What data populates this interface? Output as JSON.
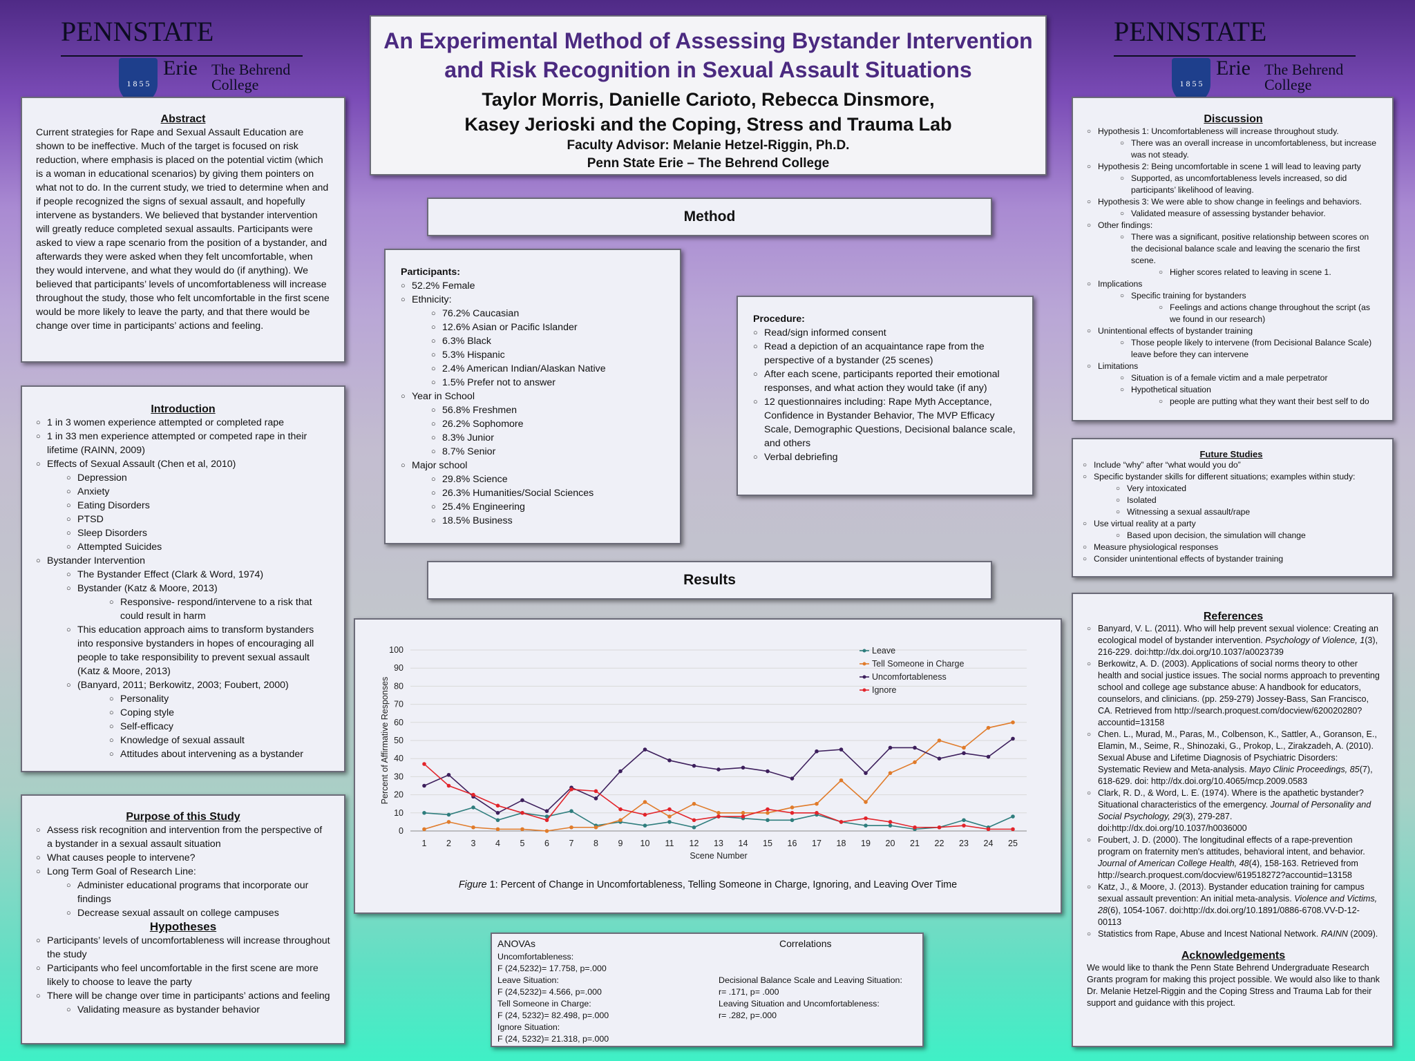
{
  "logo": {
    "wordmark": "PENNSTATE",
    "campus": "Erie",
    "college_line1": "The Behrend",
    "college_line2": "College",
    "seal": "1 8 5 5"
  },
  "title": {
    "line1": "An Experimental Method of Assessing Bystander Intervention",
    "line2": "and Risk Recognition in Sexual Assault Situations",
    "authors1": "Taylor Morris, Danielle Carioto, Rebecca Dinsmore,",
    "authors2": "Kasey Jerioski and the Coping, Stress and Trauma Lab",
    "advisor": "Faculty Advisor: Melanie Hetzel-Riggin, Ph.D.",
    "school": "Penn State Erie – The Behrend College"
  },
  "abstract": {
    "heading": "Abstract",
    "text": "Current strategies for Rape and Sexual Assault Education are shown to be ineffective. Much of the target is focused on risk reduction, where emphasis is placed on the potential victim (which is a woman in educational scenarios) by giving them pointers on what not to do.  In the current study, we tried to determine when and if people recognized the signs of sexual assault, and hopefully intervene as bystanders. We believed that bystander intervention will greatly reduce completed sexual assaults. Participants were asked to view a rape scenario from the position of a bystander, and afterwards they were asked when they felt uncomfortable, when they would intervene, and what they would do (if anything). We believed that participants’ levels of uncomfortableness will increase throughout the study, those who felt uncomfortable in the first scene would be more likely to leave the party, and that there would be change over time in participants’ actions and feeling."
  },
  "introduction": {
    "heading": "Introduction",
    "items": [
      {
        "level": 1,
        "text": "1 in 3 women experience attempted or completed rape"
      },
      {
        "level": 1,
        "text": "1 in 33 men experience attempted or competed rape in their lifetime (RAINN, 2009)"
      },
      {
        "level": 1,
        "text": "Effects of Sexual Assault (Chen et al, 2010)"
      },
      {
        "level": 2,
        "text": "Depression"
      },
      {
        "level": 2,
        "text": "Anxiety"
      },
      {
        "level": 2,
        "text": "Eating Disorders"
      },
      {
        "level": 2,
        "text": "PTSD"
      },
      {
        "level": 2,
        "text": "Sleep Disorders"
      },
      {
        "level": 2,
        "text": "Attempted Suicides"
      },
      {
        "level": 1,
        "text": "Bystander Intervention"
      },
      {
        "level": 2,
        "text": "The Bystander Effect (Clark & Word, 1974)"
      },
      {
        "level": 2,
        "text": "Bystander (Katz & Moore, 2013)"
      },
      {
        "level": 3,
        "text": "Responsive- respond/intervene to a risk that could result in harm"
      },
      {
        "level": 2,
        "text": "This education approach aims to transform bystanders into responsive bystanders in hopes of encouraging all people to take responsibility to prevent sexual assault (Katz & Moore, 2013)"
      },
      {
        "level": 2,
        "text": " (Banyard, 2011; Berkowitz, 2003; Foubert, 2000)"
      },
      {
        "level": 3,
        "text": "Personality"
      },
      {
        "level": 3,
        "text": "Coping style"
      },
      {
        "level": 3,
        "text": "Self-efficacy"
      },
      {
        "level": 3,
        "text": "Knowledge of sexual assault"
      },
      {
        "level": 3,
        "text": "Attitudes about intervening as a bystander"
      }
    ]
  },
  "purpose": {
    "heading": "Purpose of this Study",
    "items": [
      {
        "level": 1,
        "text": "Assess risk recognition and intervention from the perspective of a bystander in a sexual assault situation"
      },
      {
        "level": 1,
        "text": "What causes people to intervene?"
      },
      {
        "level": 1,
        "text": "Long Term Goal of Research Line:"
      },
      {
        "level": 2,
        "text": "Administer educational programs that incorporate our findings"
      },
      {
        "level": 2,
        "text": "Decrease sexual assault on college campuses"
      }
    ],
    "hyp_heading": "Hypotheses",
    "hyp_items": [
      {
        "level": 1,
        "text": "Participants’ levels of uncomfortableness will increase throughout the study"
      },
      {
        "level": 1,
        "text": "Participants who feel uncomfortable in the first scene are more likely to choose to leave the party"
      },
      {
        "level": 1,
        "text": "There will be change over time in participants’ actions and feeling"
      },
      {
        "level": 2,
        "text": "Validating measure as bystander behavior"
      }
    ]
  },
  "method": {
    "banner": "Method",
    "participants_heading": "Participants:",
    "participants": [
      {
        "level": 1,
        "text": "52.2% Female"
      },
      {
        "level": 1,
        "text": "Ethnicity:"
      },
      {
        "level": 2,
        "text": "76.2% Caucasian"
      },
      {
        "level": 2,
        "text": "12.6% Asian or Pacific Islander"
      },
      {
        "level": 2,
        "text": "6.3% Black"
      },
      {
        "level": 2,
        "text": "5.3% Hispanic"
      },
      {
        "level": 2,
        "text": "2.4% American Indian/Alaskan Native"
      },
      {
        "level": 2,
        "text": "1.5% Prefer not to answer"
      },
      {
        "level": 1,
        "text": "Year in School"
      },
      {
        "level": 2,
        "text": "56.8% Freshmen"
      },
      {
        "level": 2,
        "text": "26.2% Sophomore"
      },
      {
        "level": 2,
        "text": "8.3% Junior"
      },
      {
        "level": 2,
        "text": "8.7% Senior"
      },
      {
        "level": 1,
        "text": "Major school"
      },
      {
        "level": 2,
        "text": "29.8% Science"
      },
      {
        "level": 2,
        "text": "26.3% Humanities/Social Sciences"
      },
      {
        "level": 2,
        "text": "25.4% Engineering"
      },
      {
        "level": 2,
        "text": "18.5% Business"
      }
    ],
    "procedure_heading": "Procedure:",
    "procedure": [
      {
        "level": 1,
        "text": "Read/sign informed consent"
      },
      {
        "level": 1,
        "text": "Read a depiction of an acquaintance rape from the perspective of a bystander (25 scenes)"
      },
      {
        "level": 1,
        "text": "After each scene, participants reported their emotional responses, and what action they would take (if any)"
      },
      {
        "level": 1,
        "text": "12 questionnaires including: Rape Myth Acceptance, Confidence in Bystander Behavior, The MVP Efficacy Scale, Demographic Questions, Decisional balance scale, and others"
      },
      {
        "level": 1,
        "text": "Verbal debriefing"
      }
    ]
  },
  "results": {
    "banner": "Results",
    "caption_prefix": "Figure",
    "caption_num": " 1",
    "caption_text": ": Percent of Change in Uncomfortableness, Telling Someone in Charge, Ignoring, and Leaving Over Time"
  },
  "chart_data": {
    "type": "line",
    "title": "",
    "xlabel": "Scene Number",
    "ylabel": "Percent of Affirmative Responses",
    "ylim": [
      0,
      100
    ],
    "yticks": [
      0,
      10,
      20,
      30,
      40,
      50,
      60,
      70,
      80,
      90,
      100
    ],
    "x": [
      1,
      2,
      3,
      4,
      5,
      6,
      7,
      8,
      9,
      10,
      11,
      12,
      13,
      14,
      15,
      16,
      17,
      18,
      19,
      20,
      21,
      22,
      23,
      24,
      25
    ],
    "legend_position": "top-right",
    "grid": "horizontal",
    "series": [
      {
        "name": "Leave",
        "color": "#2e7d7d",
        "values": [
          10,
          9,
          13,
          6,
          10,
          8,
          11,
          3,
          5,
          3,
          5,
          2,
          8,
          7,
          6,
          6,
          9,
          5,
          3,
          3,
          1,
          2,
          6,
          2,
          8
        ]
      },
      {
        "name": "Tell Someone in Charge",
        "color": "#e07b2a",
        "values": [
          1,
          5,
          2,
          1,
          1,
          0,
          2,
          2,
          6,
          16,
          8,
          15,
          10,
          10,
          10,
          13,
          15,
          28,
          16,
          32,
          38,
          50,
          46,
          57,
          60
        ]
      },
      {
        "name": "Uncomfortableness",
        "color": "#3d1f5c",
        "values": [
          25,
          31,
          19,
          10,
          17,
          11,
          24,
          18,
          33,
          45,
          39,
          36,
          34,
          35,
          33,
          29,
          44,
          45,
          32,
          46,
          46,
          40,
          43,
          41,
          51
        ]
      },
      {
        "name": "Ignore",
        "color": "#e2242b",
        "values": [
          37,
          25,
          20,
          14,
          10,
          6,
          23,
          22,
          12,
          9,
          12,
          6,
          8,
          8,
          12,
          10,
          10,
          5,
          7,
          5,
          2,
          2,
          3,
          1,
          1
        ]
      }
    ]
  },
  "stats": {
    "anova_heading": "ANOVAs",
    "corr_heading": "Correlations",
    "anovas": [
      {
        "label": "Uncomfortableness:",
        "stat": "F (24,5232)= 17.758, p=.000"
      },
      {
        "label": "Leave Situation:",
        "stat": "F (24,5232)= 4.566, p=.000"
      },
      {
        "label": "Tell Someone in Charge:",
        "stat": "F (24, 5232)= 82.498, p=.000"
      },
      {
        "label": "Ignore Situation:",
        "stat": "F (24, 5232)= 21.318, p=.000"
      }
    ],
    "correlations": [
      {
        "label": "Decisional Balance Scale and Leaving Situation:",
        "stat": "r= .171, p= .000"
      },
      {
        "label": "Leaving Situation and Uncomfortableness:",
        "stat": "r= .282, p=.000"
      }
    ]
  },
  "discussion": {
    "heading": "Discussion",
    "items": [
      {
        "level": 1,
        "text": "Hypothesis 1: Uncomfortableness will increase throughout study."
      },
      {
        "level": 2,
        "text": "There was an overall increase in uncomfortableness, but increase was not steady."
      },
      {
        "level": 1,
        "text": "Hypothesis 2: Being uncomfortable in scene 1 will lead to leaving party"
      },
      {
        "level": 2,
        "text": "Supported, as uncomfortableness levels increased, so did participants’ likelihood of leaving."
      },
      {
        "level": 1,
        "text": "Hypothesis 3: We were able to show change in feelings and behaviors."
      },
      {
        "level": 2,
        "text": "Validated measure of assessing bystander behavior."
      },
      {
        "level": 1,
        "text": "Other findings:"
      },
      {
        "level": 2,
        "text": "There was a significant, positive relationship between scores on the decisional balance scale and leaving the scenario the first scene."
      },
      {
        "level": 3,
        "text": "Higher scores related to leaving in scene 1."
      },
      {
        "level": 1,
        "text": "Implications"
      },
      {
        "level": 2,
        "text": "Specific training for bystanders"
      },
      {
        "level": 3,
        "text": "Feelings and actions change throughout the script (as we found in our research)"
      },
      {
        "level": 1,
        "text": "Unintentional effects of bystander training"
      },
      {
        "level": 2,
        "text": "Those people likely to intervene (from Decisional Balance Scale) leave before they can intervene"
      },
      {
        "level": 1,
        "text": "Limitations"
      },
      {
        "level": 2,
        "text": "Situation is of a female victim and a male perpetrator"
      },
      {
        "level": 2,
        "text": "Hypothetical situation"
      },
      {
        "level": 3,
        "text": "people are putting what they want their best self to do"
      }
    ]
  },
  "future": {
    "heading": "Future Studies",
    "items": [
      {
        "level": 1,
        "text": "Include “why” after “what would you do”"
      },
      {
        "level": 1,
        "text": "Specific bystander skills for different situations; examples within study:"
      },
      {
        "level": 2,
        "text": "Very intoxicated"
      },
      {
        "level": 2,
        "text": "Isolated"
      },
      {
        "level": 2,
        "text": "Witnessing a sexual assault/rape"
      },
      {
        "level": 1,
        "text": "Use virtual reality at a party"
      },
      {
        "level": 2,
        "text": "Based upon decision, the simulation will change"
      },
      {
        "level": 1,
        "text": "Measure physiological responses"
      },
      {
        "level": 1,
        "text": "Consider unintentional effects of bystander training"
      }
    ]
  },
  "references": {
    "heading": "References",
    "items": [
      {
        "pre": "Banyard, V. L. (2011). Who will help prevent sexual violence: Creating an ecological model of bystander intervention. ",
        "it": "Psychology of Violence, 1",
        "post": "(3), 216-229. doi:http://dx.doi.org/10.1037/a0023739"
      },
      {
        "pre": "Berkowitz, A. D. (2003). Applications of social norms theory to other health and social justice issues. The social norms approach to preventing school and college age substance abuse: A handbook for educators, counselors, and clinicians. (pp. 259-279) Jossey-Bass, San Francisco, CA. Retrieved from http://search.proquest.com/docview/620020280?accountid=13158",
        "it": "",
        "post": ""
      },
      {
        "pre": "Chen. L., Murad, M., Paras, M., Colbenson, K., Sattler, A., Goranson, E., Elamin, M., Seime, R., Shinozaki, G., Prokop, L., Zirakzadeh, A. (2010). Sexual Abuse and Lifetime Diagnosis of Psychiatric Disorders: Systematic Review and Meta-analysis. ",
        "it": "Mayo Clinic Proceedings, 85",
        "post": "(7), 618-629. doi: http://dx.doi.org/10.4065/mcp.2009.0583"
      },
      {
        "pre": "Clark, R. D., & Word, L. E. (1974). Where is the apathetic bystander? Situational characteristics of the emergency. ",
        "it": "Journal of Personality and Social Psychology, 29",
        "post": "(3), 279-287. doi:http://dx.doi.org/10.1037/h0036000"
      },
      {
        "pre": "Foubert, J. D. (2000). The longitudinal effects of a rape-prevention program on fraternity men's attitudes, behavioral intent, and behavior. ",
        "it": "Journal of American College Health, 48",
        "post": "(4), 158-163. Retrieved from http://search.proquest.com/docview/619518272?accountid=13158"
      },
      {
        "pre": "Katz, J., & Moore, J. (2013). Bystander education training for campus sexual assault prevention: An initial meta-analysis. ",
        "it": "Violence and Victims, 28",
        "post": "(6), 1054-1067. doi:http://dx.doi.org/10.1891/0886-6708.VV-D-12-00113"
      },
      {
        "pre": "Statistics from Rape, Abuse and Incest National Network. ",
        "it": "RAINN",
        "post": " (2009)."
      }
    ],
    "ack_heading": "Acknowledgements",
    "ack_text": "We would like to thank the Penn State Behrend Undergraduate Research Grants program for making this project possible. We would also like to thank Dr. Melanie Hetzel-Riggin and the Coping Stress and Trauma Lab for their support and guidance with this project."
  }
}
